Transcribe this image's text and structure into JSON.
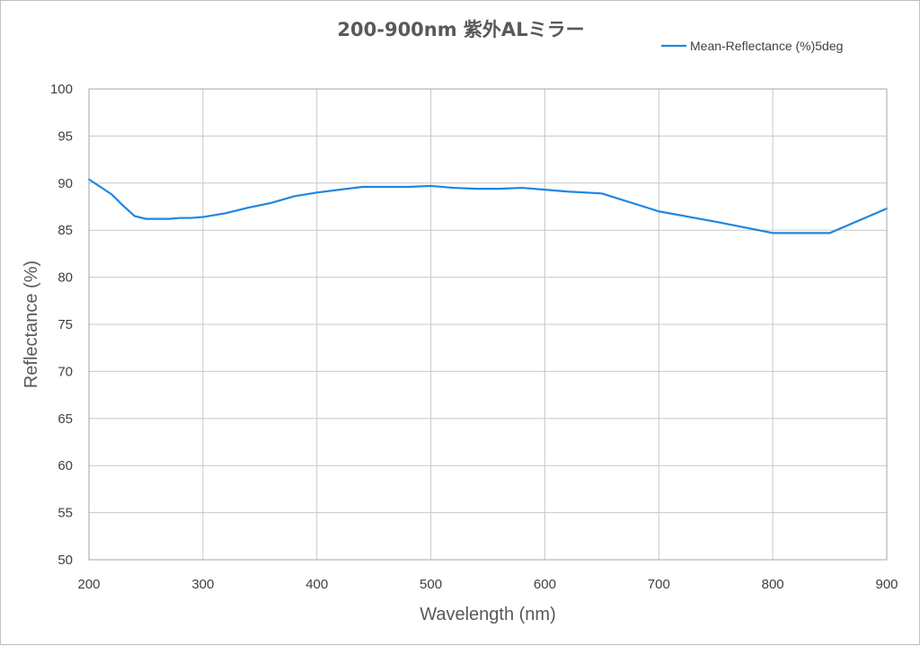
{
  "chart_data": {
    "type": "line",
    "title": "200-900nm 紫外ALミラー",
    "xlabel": "Wavelength (nm)",
    "ylabel": "Reflectance (%)",
    "xlim": [
      200,
      900
    ],
    "ylim": [
      50,
      100
    ],
    "xticks": [
      200,
      300,
      400,
      500,
      600,
      700,
      800,
      900
    ],
    "yticks": [
      50,
      55,
      60,
      65,
      70,
      75,
      80,
      85,
      90,
      95,
      100
    ],
    "grid": true,
    "legend_position": "top-right",
    "series": [
      {
        "name": "Mean-Reflectance (%)5deg",
        "color": "#1f86e0",
        "x": [
          200,
          210,
          220,
          230,
          240,
          250,
          260,
          270,
          280,
          290,
          300,
          310,
          320,
          340,
          360,
          380,
          400,
          420,
          440,
          460,
          480,
          500,
          520,
          540,
          560,
          580,
          600,
          620,
          650,
          700,
          750,
          800,
          850,
          875,
          900
        ],
        "y": [
          90.4,
          89.6,
          88.8,
          87.6,
          86.5,
          86.2,
          86.2,
          86.2,
          86.3,
          86.3,
          86.4,
          86.6,
          86.8,
          87.4,
          87.9,
          88.6,
          89.0,
          89.3,
          89.6,
          89.6,
          89.6,
          89.7,
          89.5,
          89.4,
          89.4,
          89.5,
          89.3,
          89.1,
          88.9,
          87.0,
          85.9,
          84.7,
          84.7,
          86.0,
          87.3
        ]
      }
    ]
  }
}
